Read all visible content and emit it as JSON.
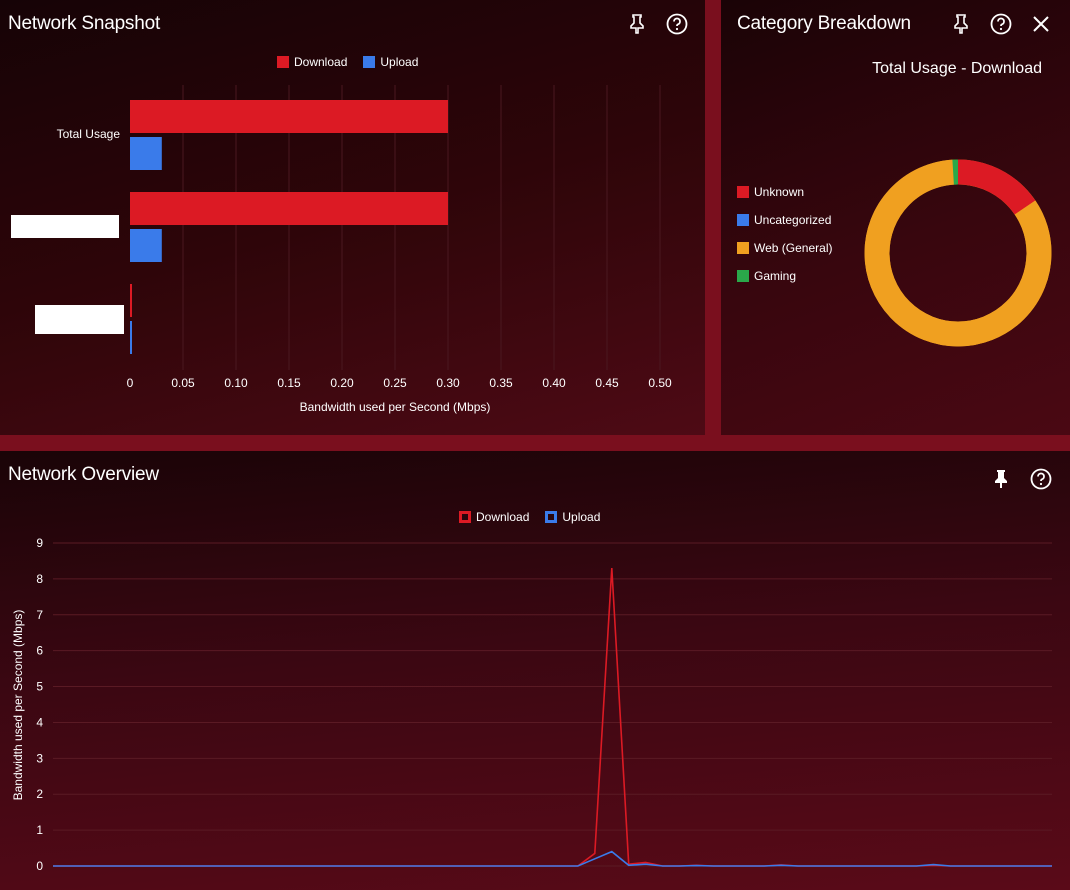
{
  "colors": {
    "download": "#dc1a24",
    "upload": "#3a7bea",
    "web": "#f0a020",
    "gaming": "#2aa84a",
    "grid": "#5a1a24"
  },
  "snapshot": {
    "title": "Network Snapshot",
    "icons": [
      "pin-icon",
      "help-icon"
    ],
    "legend": [
      {
        "label": "Download",
        "color": "#dc1a24"
      },
      {
        "label": "Upload",
        "color": "#3a7bea"
      }
    ],
    "chart_data": {
      "type": "bar",
      "orientation": "horizontal",
      "categories": [
        "Total Usage",
        "",
        ""
      ],
      "series": [
        {
          "name": "Download",
          "values": [
            0.3,
            0.3,
            0.001
          ]
        },
        {
          "name": "Upload",
          "values": [
            0.03,
            0.03,
            0.001
          ]
        }
      ],
      "xlabel": "Bandwidth used per Second (Mbps)",
      "xlim": [
        0,
        0.5
      ],
      "xticks": [
        "0",
        "0.05",
        "0.10",
        "0.15",
        "0.20",
        "0.25",
        "0.30",
        "0.35",
        "0.40",
        "0.45",
        "0.50"
      ],
      "grid": true,
      "legend": "top-center"
    }
  },
  "category": {
    "title": "Category Breakdown",
    "subtitle": "Total Usage - Download",
    "icons": [
      "pin-icon",
      "help-icon",
      "close-icon"
    ],
    "chart_data": {
      "type": "pie",
      "donut": true,
      "labels": [
        "Unknown",
        "Uncategorized",
        "Web (General)",
        "Gaming"
      ],
      "colors": [
        "#dc1a24",
        "#3a7bea",
        "#f0a020",
        "#2aa84a"
      ],
      "values": [
        15.5,
        0,
        83.5,
        1.0
      ],
      "legend": "left"
    }
  },
  "overview": {
    "title": "Network Overview",
    "icons": [
      "pin-icon",
      "help-icon"
    ],
    "legend": [
      {
        "label": "Download",
        "color": "#dc1a24"
      },
      {
        "label": "Upload",
        "color": "#3a7bea"
      }
    ],
    "chart_data": {
      "type": "line",
      "ylabel": "Bandwidth used per Second (Mbps)",
      "ylim": [
        0,
        9
      ],
      "yticks": [
        "0",
        "1",
        "2",
        "3",
        "4",
        "5",
        "6",
        "7",
        "8",
        "9"
      ],
      "grid": true,
      "legend": "top-center",
      "series": [
        {
          "name": "Download",
          "values": [
            0,
            0,
            0,
            0,
            0,
            0,
            0,
            0,
            0,
            0,
            0,
            0,
            0,
            0,
            0,
            0,
            0,
            0,
            0,
            0,
            0,
            0,
            0,
            0,
            0,
            0,
            0,
            0,
            0,
            0,
            0,
            0,
            0.35,
            8.3,
            0.05,
            0.1,
            0,
            0,
            0.02,
            0,
            0,
            0,
            0,
            0.03,
            0,
            0,
            0,
            0,
            0,
            0,
            0,
            0,
            0.02,
            0,
            0,
            0,
            0,
            0,
            0,
            0
          ]
        },
        {
          "name": "Upload",
          "values": [
            0,
            0,
            0,
            0,
            0,
            0,
            0,
            0,
            0,
            0,
            0,
            0,
            0,
            0,
            0,
            0,
            0,
            0,
            0,
            0,
            0,
            0,
            0,
            0,
            0,
            0,
            0,
            0,
            0,
            0,
            0,
            0,
            0.2,
            0.4,
            0.02,
            0.05,
            0,
            0,
            0.01,
            0,
            0,
            0,
            0,
            0.02,
            0,
            0,
            0,
            0,
            0,
            0,
            0,
            0,
            0.04,
            0,
            0,
            0,
            0,
            0,
            0,
            0
          ]
        }
      ]
    }
  }
}
